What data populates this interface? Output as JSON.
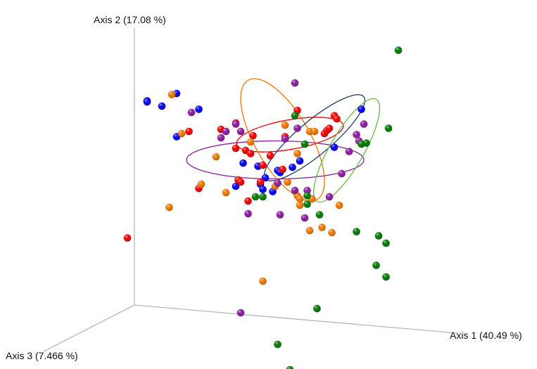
{
  "chart_data": {
    "type": "scatter",
    "title": "",
    "axes": {
      "axis1": "Axis 1 (40.49 %)",
      "axis2": "Axis 2 (17.08 %)",
      "axis3": "Axis 3 (7.466 %)"
    },
    "grid": false,
    "legend": "none",
    "series": [
      {
        "color": "#0000ee",
        "points": [
          [
            -0.36,
            0.59
          ],
          [
            -0.36,
            0.58
          ],
          [
            -0.3,
            0.54
          ],
          [
            -0.24,
            0.66
          ],
          [
            -0.15,
            0.51
          ],
          [
            -0.24,
            0.25
          ],
          [
            0.51,
            0.51
          ],
          [
            0.4,
            0.15
          ],
          [
            0.26,
            0.02
          ],
          [
            0.17,
            -0.07
          ],
          [
            0.18,
            -0.09
          ],
          [
            0.12,
            -0.14
          ],
          [
            0.09,
            -0.03
          ],
          [
            0.03,
            0.0
          ],
          [
            0.0,
            -0.22
          ],
          [
            0.1,
            -0.2
          ],
          [
            0.11,
            -0.25
          ],
          [
            0.15,
            -0.27
          ],
          [
            0.23,
            -0.04
          ]
        ]
      },
      {
        "color": "#ee0000",
        "points": [
          [
            -0.19,
            0.3
          ],
          [
            -0.06,
            0.32
          ],
          [
            0.0,
            0.38
          ],
          [
            0.25,
            0.5
          ],
          [
            0.36,
            0.28
          ],
          [
            0.37,
            0.31
          ],
          [
            0.38,
            0.33
          ],
          [
            0.4,
            0.45
          ],
          [
            0.41,
            0.42
          ],
          [
            0.2,
            0.25
          ],
          [
            0.0,
            0.14
          ],
          [
            0.07,
            0.26
          ],
          [
            0.04,
            0.12
          ],
          [
            0.06,
            0.09
          ],
          [
            0.11,
            -0.02
          ],
          [
            0.14,
            0.07
          ],
          [
            0.01,
            -0.16
          ],
          [
            0.02,
            -0.18
          ],
          [
            0.1,
            -0.18
          ],
          [
            -0.15,
            -0.24
          ],
          [
            -0.44,
            -0.71
          ],
          [
            0.05,
            -0.36
          ],
          [
            0.19,
            -0.06
          ]
        ]
      },
      {
        "color": "#ee7700",
        "points": [
          [
            -0.26,
            0.65
          ],
          [
            -0.22,
            0.28
          ],
          [
            -0.14,
            -0.2
          ],
          [
            -0.27,
            -0.42
          ],
          [
            -0.08,
            0.06
          ],
          [
            0.06,
            0.2
          ],
          [
            0.2,
            0.36
          ],
          [
            0.25,
            0.09
          ],
          [
            0.3,
            0.3
          ],
          [
            0.32,
            0.3
          ],
          [
            0.16,
            -0.22
          ],
          [
            0.21,
            -0.18
          ],
          [
            0.25,
            -0.31
          ],
          [
            0.26,
            -0.34
          ],
          [
            0.31,
            -0.34
          ],
          [
            0.26,
            -0.4
          ],
          [
            0.35,
            -0.61
          ],
          [
            0.3,
            -0.64
          ],
          [
            0.42,
            -0.4
          ],
          [
            -0.04,
            -0.28
          ],
          [
            0.39,
            -0.66
          ],
          [
            0.11,
            -1.12
          ]
        ]
      },
      {
        "color": "#8b1a9e",
        "points": [
          [
            0.24,
            0.76
          ],
          [
            -0.18,
            0.48
          ],
          [
            -0.06,
            0.24
          ],
          [
            -0.04,
            0.3
          ],
          [
            0.0,
            0.37
          ],
          [
            0.02,
            0.3
          ],
          [
            0.25,
            0.33
          ],
          [
            0.52,
            0.37
          ],
          [
            0.49,
            0.27
          ],
          [
            0.5,
            0.21
          ],
          [
            0.46,
            0.11
          ],
          [
            0.2,
            0.23
          ],
          [
            0.17,
            -0.19
          ],
          [
            0.24,
            -0.26
          ],
          [
            0.29,
            -0.26
          ],
          [
            0.38,
            -0.32
          ],
          [
            0.28,
            -0.52
          ],
          [
            0.18,
            -0.49
          ],
          [
            0.05,
            -0.48
          ],
          [
            0.43,
            -0.1
          ],
          [
            0.02,
            -1.42
          ]
        ]
      },
      {
        "color": "#007700",
        "points": [
          [
            0.66,
            1.07
          ],
          [
            0.62,
            0.33
          ],
          [
            0.53,
            0.19
          ],
          [
            0.51,
            0.18
          ],
          [
            0.28,
            0.18
          ],
          [
            0.24,
            0.45
          ],
          [
            0.08,
            -0.32
          ],
          [
            0.11,
            -0.32
          ],
          [
            0.29,
            -0.31
          ],
          [
            0.29,
            -0.39
          ],
          [
            0.34,
            -0.49
          ],
          [
            0.49,
            -0.65
          ],
          [
            0.58,
            -0.69
          ],
          [
            0.61,
            -0.76
          ],
          [
            0.57,
            -0.97
          ],
          [
            0.61,
            -1.08
          ],
          [
            0.33,
            -1.38
          ],
          [
            0.17,
            -1.72
          ],
          [
            0.22,
            -1.96
          ]
        ]
      }
    ],
    "ellipses": [
      {
        "color": "#8b1a9e",
        "center": [
          0.16,
          0.03
        ],
        "semi_axes": [
          0.36,
          0.18
        ],
        "rotation_deg": 0
      },
      {
        "color": "#ee0000",
        "center": [
          0.22,
          0.27
        ],
        "semi_axes": [
          0.22,
          0.14
        ],
        "rotation_deg": -10
      },
      {
        "color": "#ee7700",
        "center": [
          0.19,
          0.22
        ],
        "semi_axes": [
          0.28,
          0.26
        ],
        "rotation_deg": 60
      },
      {
        "color": "#1f3d6b",
        "center": [
          0.32,
          0.24
        ],
        "semi_axes": [
          0.26,
          0.16
        ],
        "rotation_deg": -40
      },
      {
        "color": "#66bb44",
        "center": [
          0.45,
          0.12
        ],
        "semi_axes": [
          0.24,
          0.16
        ],
        "rotation_deg": -60
      }
    ]
  }
}
